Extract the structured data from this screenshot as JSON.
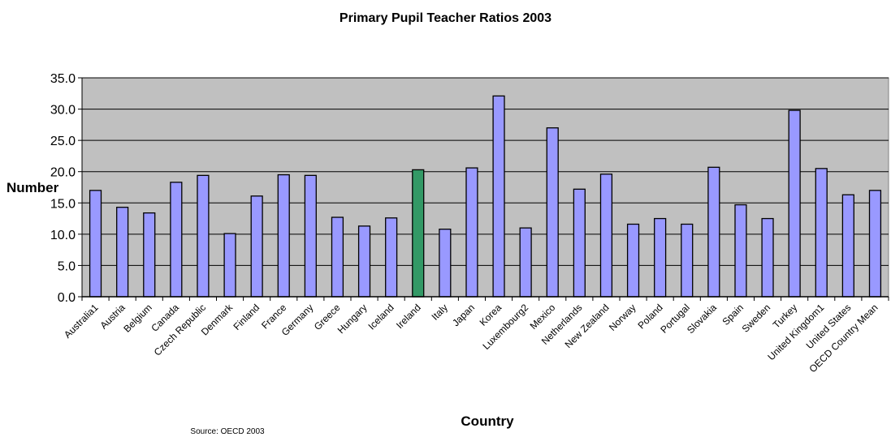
{
  "chart_data": {
    "type": "bar",
    "title": "Primary Pupil Teacher Ratios 2003",
    "xlabel": "Country",
    "ylabel": "Number",
    "source": "Source: OECD 2003",
    "ylim": [
      0,
      35
    ],
    "yticks": [
      "0.0",
      "5.0",
      "10.0",
      "15.0",
      "20.0",
      "25.0",
      "30.0",
      "35.0"
    ],
    "grid": true,
    "legend": "none",
    "plot_background": "#c0c0c0",
    "bar_color": "#9999ff",
    "highlight_color": "#339966",
    "highlight_category": "Ireland",
    "categories": [
      "Australia1",
      "Austria",
      "Belgium",
      "Canada",
      "Czech Republic",
      "Denmark",
      "Finland",
      "France",
      "Germany",
      "Greece",
      "Hungary",
      "Iceland",
      "Ireland",
      "Italy",
      "Japan",
      "Korea",
      "Luxembourg2",
      "Mexico",
      "Netherlands",
      "New Zealand",
      "Norway",
      "Poland",
      "Portugal",
      "Slovakia",
      "Spain",
      "Sweden",
      "Turkey",
      "United Kingdom1",
      "United States",
      "OECD Country Mean"
    ],
    "values": [
      17.0,
      14.3,
      13.4,
      18.3,
      19.4,
      10.1,
      16.1,
      19.5,
      19.4,
      12.7,
      11.3,
      12.6,
      20.3,
      10.8,
      20.6,
      32.1,
      11.0,
      27.0,
      17.2,
      19.6,
      11.6,
      12.5,
      11.6,
      20.7,
      14.7,
      12.5,
      29.8,
      20.5,
      16.3,
      17.0
    ]
  }
}
